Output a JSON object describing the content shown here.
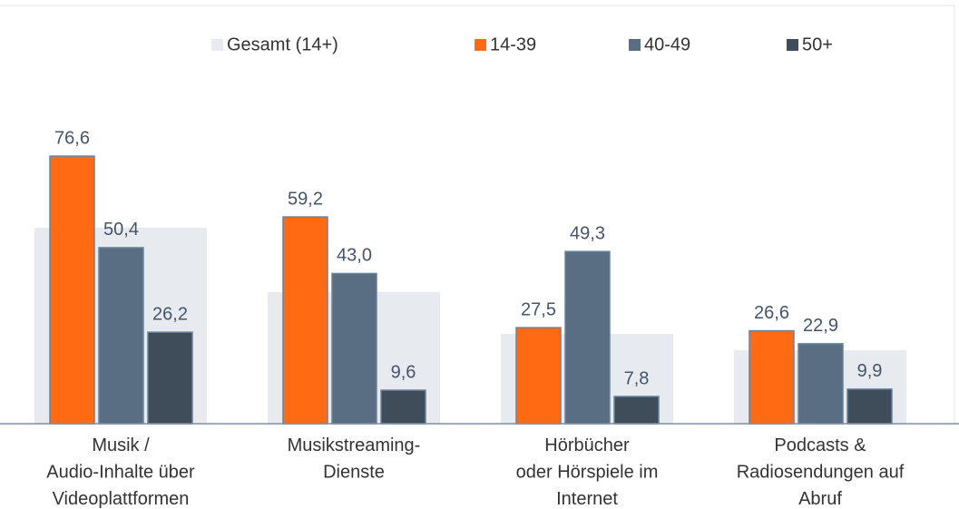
{
  "chart_data": {
    "type": "bar",
    "categories": [
      "Musik /\nAudio-Inhalte über\nVideoplattformen",
      "Musikstreaming-\nDienste",
      "Hörbücher\noder Hörspiele im\nInternet",
      "Podcasts &\nRadiosendungen auf\nAbruf"
    ],
    "series": [
      {
        "name": "Gesamt (14+)",
        "color": "#e7eaef",
        "values": [
          56.1,
          37.7,
          25.7,
          21.0
        ]
      },
      {
        "name": "14-39",
        "color": "#ff6a13",
        "values": [
          76.6,
          59.2,
          27.5,
          26.6
        ],
        "value_labels": [
          "76,6",
          "59,2",
          "27,5",
          "26,6"
        ]
      },
      {
        "name": "40-49",
        "color": "#5a6e83",
        "values": [
          50.4,
          43.0,
          49.3,
          22.9
        ],
        "value_labels": [
          "50,4",
          "43,0",
          "49,3",
          "22,9"
        ]
      },
      {
        "name": "50+",
        "color": "#3f4d5b",
        "values": [
          26.2,
          9.6,
          7.8,
          9.9
        ],
        "value_labels": [
          "26,2",
          "9,6",
          "7,8",
          "9,9"
        ]
      }
    ]
  }
}
